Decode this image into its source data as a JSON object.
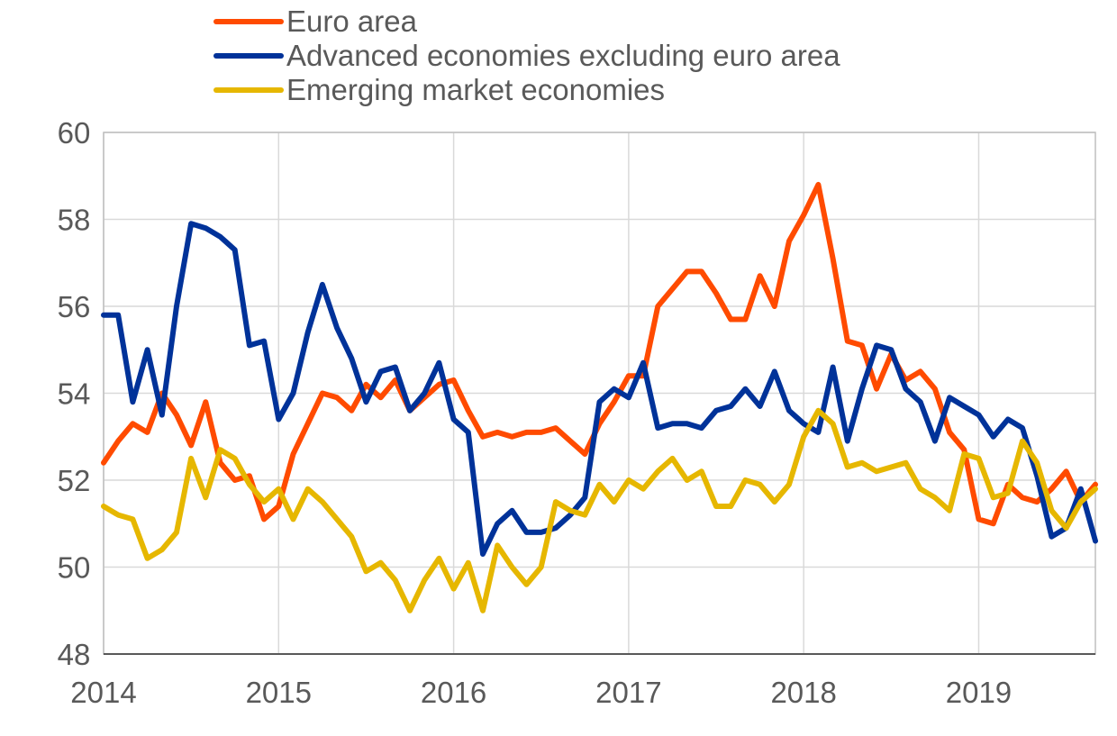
{
  "chart_data": {
    "type": "line",
    "title": "",
    "xlabel": "",
    "ylabel": "",
    "ylim": [
      48,
      60
    ],
    "yticks": [
      48,
      50,
      52,
      54,
      56,
      58,
      60
    ],
    "xlim": [
      "2014-01",
      "2019-09"
    ],
    "xticks": [
      {
        "label": "2014",
        "date": "2014-01"
      },
      {
        "label": "2015",
        "date": "2015-01"
      },
      {
        "label": "2016",
        "date": "2016-01"
      },
      {
        "label": "2017",
        "date": "2017-01"
      },
      {
        "label": "2018",
        "date": "2018-01"
      },
      {
        "label": "2019",
        "date": "2019-01"
      }
    ],
    "grid": {
      "vertical": true,
      "horizontal": true
    },
    "legend": "top",
    "x": [
      "2014-01",
      "2014-02",
      "2014-03",
      "2014-04",
      "2014-05",
      "2014-06",
      "2014-07",
      "2014-08",
      "2014-09",
      "2014-10",
      "2014-11",
      "2014-12",
      "2015-01",
      "2015-02",
      "2015-03",
      "2015-04",
      "2015-05",
      "2015-06",
      "2015-07",
      "2015-08",
      "2015-09",
      "2015-10",
      "2015-11",
      "2015-12",
      "2016-01",
      "2016-02",
      "2016-03",
      "2016-04",
      "2016-05",
      "2016-06",
      "2016-07",
      "2016-08",
      "2016-09",
      "2016-10",
      "2016-11",
      "2016-12",
      "2017-01",
      "2017-02",
      "2017-03",
      "2017-04",
      "2017-05",
      "2017-06",
      "2017-07",
      "2017-08",
      "2017-09",
      "2017-10",
      "2017-11",
      "2017-12",
      "2018-01",
      "2018-02",
      "2018-03",
      "2018-04",
      "2018-05",
      "2018-06",
      "2018-07",
      "2018-08",
      "2018-09",
      "2018-10",
      "2018-11",
      "2018-12",
      "2019-01",
      "2019-02",
      "2019-03",
      "2019-04",
      "2019-05",
      "2019-06",
      "2019-07",
      "2019-08",
      "2019-09"
    ],
    "series": [
      {
        "name": "Euro area",
        "color": "#FF4B00",
        "values": [
          52.4,
          52.9,
          53.3,
          53.1,
          54.0,
          53.5,
          52.8,
          53.8,
          52.4,
          52.0,
          52.1,
          51.1,
          51.4,
          52.6,
          53.3,
          54.0,
          53.9,
          53.6,
          54.2,
          53.9,
          54.3,
          53.6,
          53.9,
          54.2,
          54.3,
          53.6,
          53.0,
          53.1,
          53.0,
          53.1,
          53.1,
          53.2,
          52.9,
          52.6,
          53.3,
          53.8,
          54.4,
          54.4,
          56.0,
          56.4,
          56.8,
          56.8,
          56.3,
          55.7,
          55.7,
          56.7,
          56.0,
          57.5,
          58.1,
          58.8,
          57.1,
          55.2,
          55.1,
          54.1,
          54.9,
          54.3,
          54.5,
          54.1,
          53.1,
          52.7,
          51.1,
          51.0,
          51.9,
          51.6,
          51.5,
          51.8,
          52.2,
          51.5,
          51.9
        ]
      },
      {
        "name": "Advanced economies excluding euro area",
        "color": "#003299",
        "values": [
          55.8,
          55.8,
          53.8,
          55.0,
          53.5,
          56.0,
          57.9,
          57.8,
          57.6,
          57.3,
          55.1,
          55.2,
          53.4,
          54.0,
          55.4,
          56.5,
          55.5,
          54.8,
          53.8,
          54.5,
          54.6,
          53.6,
          54.0,
          54.7,
          53.4,
          53.1,
          50.3,
          51.0,
          51.3,
          50.8,
          50.8,
          50.9,
          51.2,
          51.6,
          53.8,
          54.1,
          53.9,
          54.7,
          53.2,
          53.3,
          53.3,
          53.2,
          53.6,
          53.7,
          54.1,
          53.7,
          54.5,
          53.6,
          53.3,
          53.1,
          54.6,
          52.9,
          54.1,
          55.1,
          55.0,
          54.1,
          53.8,
          52.9,
          53.9,
          53.7,
          53.5,
          53.0,
          53.4,
          53.2,
          52.1,
          50.7,
          50.9,
          51.8,
          50.6
        ]
      },
      {
        "name": "Emerging market economies",
        "color": "#E6B700",
        "values": [
          51.4,
          51.2,
          51.1,
          50.2,
          50.4,
          50.8,
          52.5,
          51.6,
          52.7,
          52.5,
          51.9,
          51.5,
          51.8,
          51.1,
          51.8,
          51.5,
          51.1,
          50.7,
          49.9,
          50.1,
          49.7,
          49.0,
          49.7,
          50.2,
          49.5,
          50.1,
          49.0,
          50.5,
          50.0,
          49.6,
          50.0,
          51.5,
          51.3,
          51.2,
          51.9,
          51.5,
          52.0,
          51.8,
          52.2,
          52.5,
          52.0,
          52.2,
          51.4,
          51.4,
          52.0,
          51.9,
          51.5,
          51.9,
          53.0,
          53.6,
          53.3,
          52.3,
          52.4,
          52.2,
          52.3,
          52.4,
          51.8,
          51.6,
          51.3,
          52.6,
          52.5,
          51.6,
          51.7,
          52.9,
          52.4,
          51.3,
          50.9,
          51.5,
          51.8
        ]
      }
    ]
  }
}
